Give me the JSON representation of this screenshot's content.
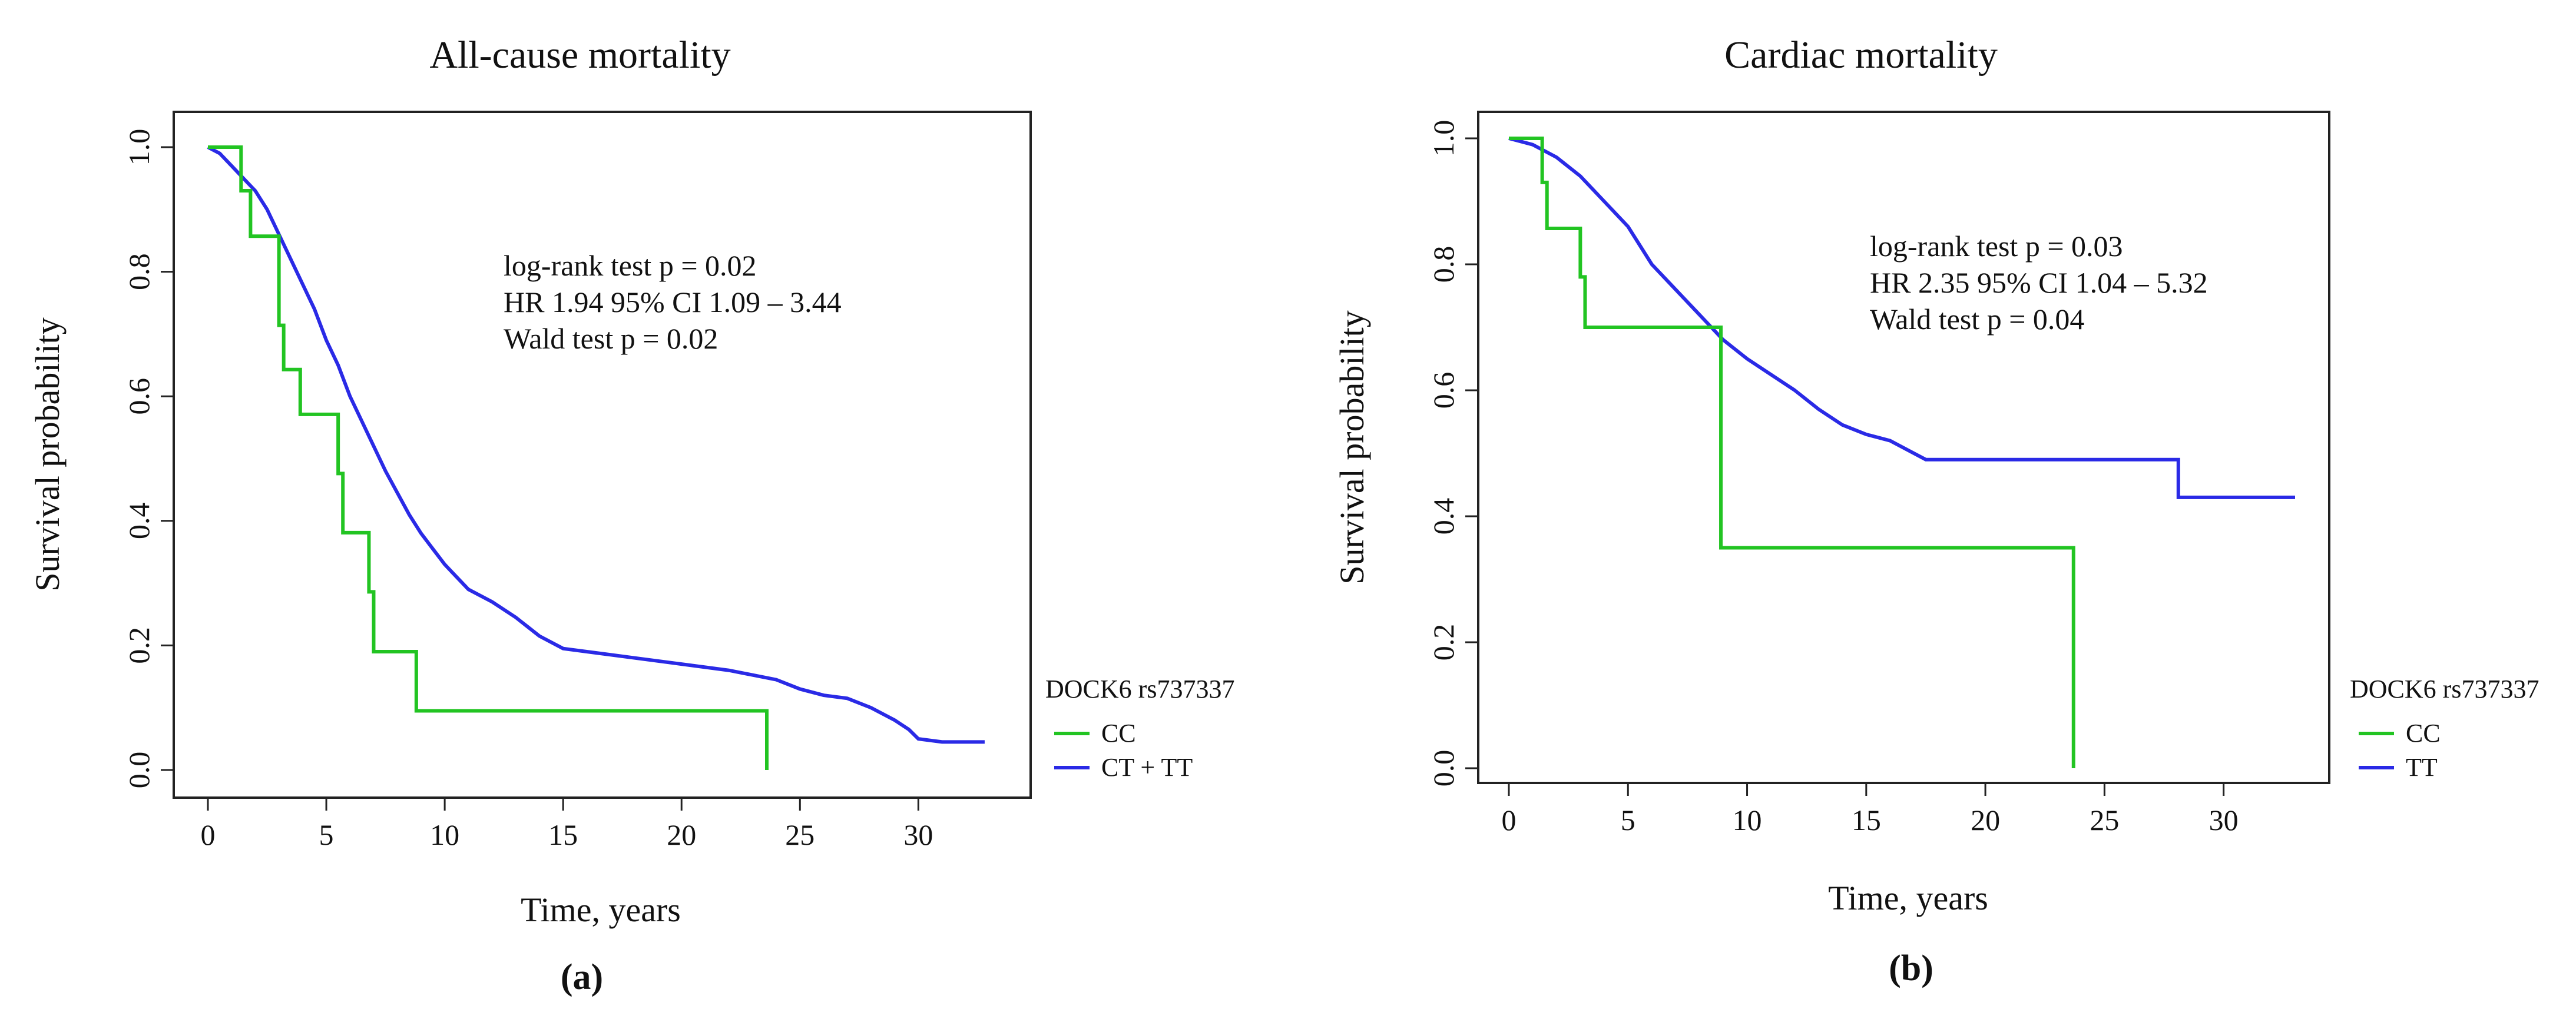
{
  "colors": {
    "cc": "#22c422",
    "blue": "#2a2ae6",
    "axis": "#222222"
  },
  "chart_data": [
    {
      "type": "line",
      "title": "All-cause mortality",
      "xlabel": "Time, years",
      "ylabel": "Survival probability",
      "xlim": [
        0,
        33
      ],
      "ylim": [
        0,
        1.0
      ],
      "xticks": [
        "0",
        "5",
        "10",
        "15",
        "20",
        "25",
        "30"
      ],
      "yticks": [
        "0.0",
        "0.2",
        "0.4",
        "0.6",
        "0.8",
        "1.0"
      ],
      "annotations": [
        "log-rank test p = 0.02",
        "HR 1.94 95% CI 1.09 – 3.44",
        "Wald test p = 0.02"
      ],
      "legend": {
        "title": "DOCK6 rs737337",
        "placement": "outside-right"
      },
      "series": [
        {
          "name": "CC",
          "color": "#22c422",
          "x": [
            0,
            1.4,
            1.4,
            1.8,
            1.8,
            3.0,
            3.0,
            3.2,
            3.2,
            3.9,
            3.9,
            5.5,
            5.5,
            5.7,
            5.7,
            6.8,
            6.8,
            7.0,
            7.0,
            8.8,
            8.8,
            23.6,
            23.6
          ],
          "y": [
            1.0,
            1.0,
            0.93,
            0.93,
            0.857,
            0.857,
            0.714,
            0.714,
            0.643,
            0.643,
            0.571,
            0.571,
            0.476,
            0.476,
            0.381,
            0.381,
            0.286,
            0.286,
            0.19,
            0.19,
            0.095,
            0.095,
            0.0
          ]
        },
        {
          "name": "CT + TT",
          "color": "#2a2ae6",
          "x": [
            0,
            0.5,
            1.0,
            1.5,
            2.0,
            2.5,
            3.0,
            3.5,
            4.0,
            4.5,
            5.0,
            5.5,
            6.0,
            6.5,
            7.0,
            7.5,
            8.0,
            8.5,
            9.0,
            9.5,
            10.0,
            11.0,
            12.0,
            13.0,
            14.0,
            15.0,
            16.0,
            17.0,
            18.0,
            20.0,
            22.0,
            24.0,
            25.0,
            26.0,
            27.0,
            28.0,
            29.0,
            29.6,
            30.0,
            31.0,
            32.8
          ],
          "y": [
            1.0,
            0.99,
            0.97,
            0.95,
            0.93,
            0.9,
            0.86,
            0.82,
            0.78,
            0.74,
            0.69,
            0.65,
            0.6,
            0.56,
            0.52,
            0.48,
            0.445,
            0.41,
            0.38,
            0.355,
            0.33,
            0.29,
            0.27,
            0.245,
            0.215,
            0.195,
            0.19,
            0.185,
            0.18,
            0.17,
            0.16,
            0.145,
            0.13,
            0.12,
            0.115,
            0.1,
            0.08,
            0.065,
            0.05,
            0.045,
            0.045
          ]
        }
      ]
    },
    {
      "type": "line",
      "title": "Cardiac mortality",
      "xlabel": "Time, years",
      "ylabel": "Survival probability",
      "xlim": [
        0,
        33
      ],
      "ylim": [
        0,
        1.0
      ],
      "xticks": [
        "0",
        "5",
        "10",
        "15",
        "20",
        "25",
        "30"
      ],
      "yticks": [
        "0.0",
        "0.2",
        "0.4",
        "0.6",
        "0.8",
        "1.0"
      ],
      "annotations": [
        "log-rank test p = 0.03",
        "HR 2.35 95% CI 1.04 – 5.32",
        "Wald test p = 0.04"
      ],
      "legend": {
        "title": "DOCK6 rs737337",
        "placement": "outside-right"
      },
      "series": [
        {
          "name": "CC",
          "color": "#22c422",
          "x": [
            0,
            1.4,
            1.4,
            1.6,
            1.6,
            3.0,
            3.0,
            3.2,
            3.2,
            8.9,
            8.9,
            23.7,
            23.7
          ],
          "y": [
            1.0,
            1.0,
            0.93,
            0.93,
            0.857,
            0.857,
            0.78,
            0.78,
            0.7,
            0.7,
            0.35,
            0.35,
            0.0
          ]
        },
        {
          "name": "TT",
          "color": "#2a2ae6",
          "x": [
            0,
            1.0,
            2.0,
            3.0,
            4.0,
            5.0,
            6.0,
            7.0,
            8.0,
            9.0,
            10.0,
            11.0,
            12.0,
            13.0,
            14.0,
            15.0,
            16.0,
            17.5,
            20.0,
            25.0,
            28.1,
            28.1,
            33.0
          ],
          "y": [
            1.0,
            0.99,
            0.97,
            0.94,
            0.9,
            0.86,
            0.8,
            0.76,
            0.72,
            0.68,
            0.65,
            0.625,
            0.6,
            0.57,
            0.545,
            0.53,
            0.52,
            0.49,
            0.49,
            0.49,
            0.49,
            0.43,
            0.43
          ]
        }
      ]
    }
  ],
  "panel_labels": [
    "(a)",
    "(b)"
  ]
}
